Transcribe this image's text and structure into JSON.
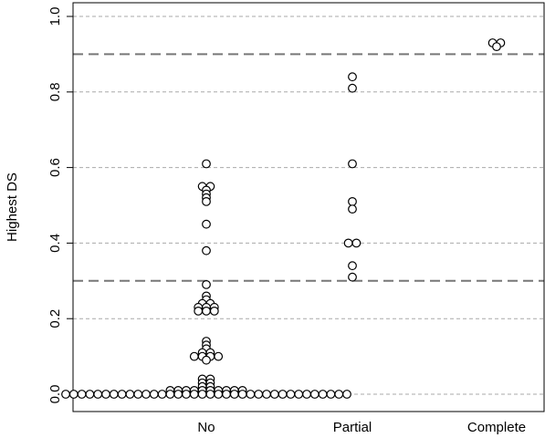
{
  "chart_data": {
    "type": "scatter",
    "title": "",
    "xlabel": "",
    "ylabel": "Highest DS",
    "categories": [
      "No",
      "Partial",
      "Complete"
    ],
    "ylim": [
      0,
      1
    ],
    "yticks": [
      "0.0",
      "0.2",
      "0.4",
      "0.6",
      "0.8",
      "1.0"
    ],
    "grid": "horizontal dashed",
    "thresholds": [
      0.3,
      0.9
    ],
    "series": [
      {
        "category": "No",
        "values": [
          0.61,
          0.55,
          0.55,
          0.54,
          0.53,
          0.52,
          0.51,
          0.45,
          0.38,
          0.29,
          0.26,
          0.25,
          0.24,
          0.24,
          0.23,
          0.23,
          0.23,
          0.22,
          0.22,
          0.22,
          0.14,
          0.13,
          0.12,
          0.11,
          0.11,
          0.1,
          0.1,
          0.1,
          0.1,
          0.09,
          0.04,
          0.04,
          0.03,
          0.03,
          0.02,
          0.02,
          0.01,
          0.01,
          0.01,
          0.01,
          0.01,
          0.01,
          0.01,
          0.01,
          0.01,
          0.01,
          0,
          0,
          0,
          0,
          0,
          0,
          0,
          0,
          0,
          0,
          0,
          0,
          0,
          0,
          0,
          0,
          0,
          0,
          0,
          0,
          0,
          0,
          0,
          0,
          0,
          0,
          0,
          0,
          0,
          0,
          0,
          0,
          0,
          0,
          0,
          0
        ]
      },
      {
        "category": "Partial",
        "values": [
          0.84,
          0.81,
          0.61,
          0.51,
          0.49,
          0.4,
          0.4,
          0.34,
          0.31
        ]
      },
      {
        "category": "Complete",
        "values": [
          0.93,
          0.93,
          0.92
        ]
      }
    ]
  }
}
